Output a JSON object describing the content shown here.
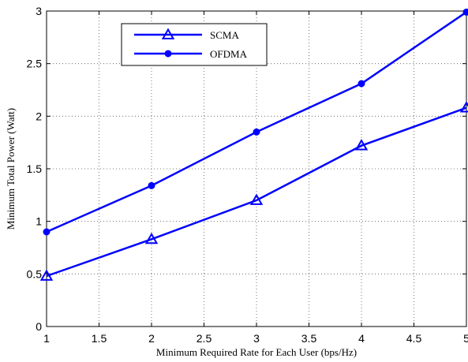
{
  "chart_data": {
    "type": "line",
    "xlabel": "Minimum Required Rate for Each User (bps/Hz)",
    "ylabel": "Minimum Total Power (Watt)",
    "xlim": [
      1,
      5
    ],
    "ylim": [
      0,
      3
    ],
    "x_ticks": [
      "1",
      "1.5",
      "2",
      "2.5",
      "3",
      "3.5",
      "4",
      "4.5",
      "5"
    ],
    "y_ticks": [
      "0",
      "0.5",
      "1",
      "1.5",
      "2",
      "2.5",
      "3"
    ],
    "grid": true,
    "legend_position": "top-left",
    "x": [
      1,
      2,
      3,
      4,
      5
    ],
    "series": [
      {
        "name": "SCMA",
        "marker": "triangle",
        "color": "#0000ff",
        "values": [
          0.48,
          0.83,
          1.2,
          1.72,
          2.08
        ]
      },
      {
        "name": "OFDMA",
        "marker": "circle",
        "color": "#0000ff",
        "values": [
          0.9,
          1.34,
          1.85,
          2.31,
          2.99
        ]
      }
    ]
  }
}
